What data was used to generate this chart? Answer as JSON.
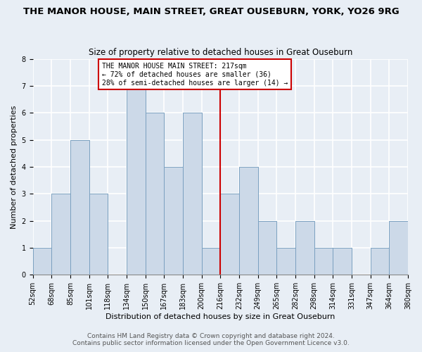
{
  "title": "THE MANOR HOUSE, MAIN STREET, GREAT OUSEBURN, YORK, YO26 9RG",
  "subtitle": "Size of property relative to detached houses in Great Ouseburn",
  "xlabel": "Distribution of detached houses by size in Great Ouseburn",
  "ylabel": "Number of detached properties",
  "footer1": "Contains HM Land Registry data © Crown copyright and database right 2024.",
  "footer2": "Contains public sector information licensed under the Open Government Licence v3.0.",
  "bin_labels": [
    "52sqm",
    "68sqm",
    "85sqm",
    "101sqm",
    "118sqm",
    "134sqm",
    "150sqm",
    "167sqm",
    "183sqm",
    "200sqm",
    "216sqm",
    "232sqm",
    "249sqm",
    "265sqm",
    "282sqm",
    "298sqm",
    "314sqm",
    "331sqm",
    "347sqm",
    "364sqm",
    "380sqm"
  ],
  "bar_values": [
    1,
    3,
    5,
    3,
    0,
    7,
    6,
    4,
    6,
    1,
    3,
    4,
    2,
    1,
    2,
    1,
    1,
    0,
    1,
    2
  ],
  "bar_color": "#ccd9e8",
  "bar_edge_color": "#7aa0c0",
  "property_line_color": "#cc0000",
  "annotation_line1": "THE MANOR HOUSE MAIN STREET: 217sqm",
  "annotation_line2": "← 72% of detached houses are smaller (36)",
  "annotation_line3": "28% of semi-detached houses are larger (14) →",
  "annotation_box_edge_color": "#cc0000",
  "annotation_box_face_color": "white",
  "ylim": [
    0,
    8
  ],
  "yticks": [
    0,
    1,
    2,
    3,
    4,
    5,
    6,
    7,
    8
  ],
  "background_color": "#e8eef5",
  "grid_color": "white",
  "title_fontsize": 9.5,
  "subtitle_fontsize": 8.5,
  "axis_label_fontsize": 8,
  "tick_fontsize": 7,
  "ylabel_fontsize": 8,
  "footer_fontsize": 6.5
}
